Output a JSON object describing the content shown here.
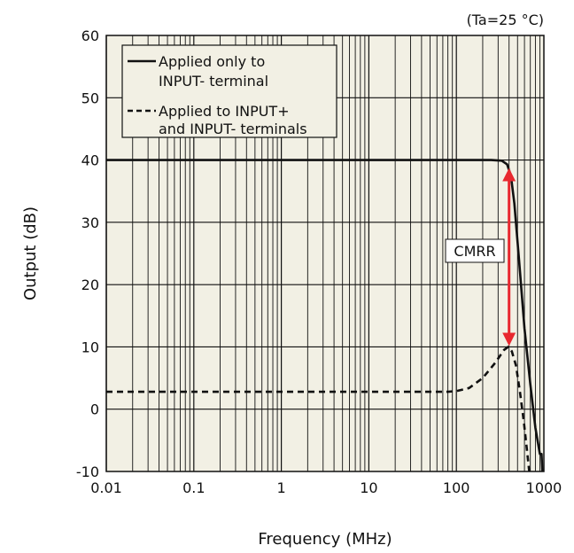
{
  "chart_data": {
    "type": "line",
    "annotation_condition": "(Ta=25 °C)",
    "xlabel": "Frequency (MHz)",
    "ylabel": "Output (dB)",
    "xscale": "log",
    "xlim": [
      0.01,
      1000
    ],
    "ylim": [
      -10,
      60
    ],
    "x_ticks": [
      0.01,
      0.1,
      1,
      10,
      100,
      1000
    ],
    "x_tick_labels": [
      "0.01",
      "0.1",
      "1",
      "10",
      "100",
      "1000"
    ],
    "y_ticks": [
      -10,
      0,
      10,
      20,
      30,
      40,
      50,
      60
    ],
    "y_tick_labels": [
      "-10",
      "0",
      "10",
      "20",
      "30",
      "40",
      "50",
      "60"
    ],
    "grid": true,
    "plot_background": "#f2f0e4",
    "legend": {
      "placement": "top-left",
      "entries": [
        {
          "line1": "Applied only to",
          "line2": "INPUT- terminal",
          "style": "solid"
        },
        {
          "line1": "Applied to INPUT+",
          "line2": "and INPUT- terminals",
          "style": "dashed"
        }
      ]
    },
    "series": [
      {
        "style": "solid",
        "color": "#111111",
        "points": [
          [
            0.01,
            40
          ],
          [
            100,
            40
          ],
          [
            250,
            40
          ],
          [
            330,
            39.9
          ],
          [
            380,
            39.3
          ],
          [
            420,
            37.5
          ],
          [
            460,
            33
          ],
          [
            520,
            24
          ],
          [
            600,
            13
          ],
          [
            700,
            4
          ],
          [
            800,
            -3
          ],
          [
            900,
            -7.2
          ],
          [
            940,
            -7.2
          ],
          [
            960,
            -10
          ]
        ]
      },
      {
        "style": "dashed",
        "color": "#111111",
        "points": [
          [
            0.01,
            2.8
          ],
          [
            80,
            2.8
          ],
          [
            100,
            2.9
          ],
          [
            140,
            3.4
          ],
          [
            200,
            5
          ],
          [
            280,
            7.5
          ],
          [
            350,
            9.5
          ],
          [
            390,
            10
          ],
          [
            430,
            9.3
          ],
          [
            480,
            7
          ],
          [
            530,
            3
          ],
          [
            590,
            -2
          ],
          [
            640,
            -6.5
          ],
          [
            680,
            -10
          ]
        ]
      }
    ],
    "annotation": {
      "label": "CMRR",
      "color": "#e8282f",
      "x": 400,
      "y_from": 10,
      "y_to": 40
    }
  }
}
